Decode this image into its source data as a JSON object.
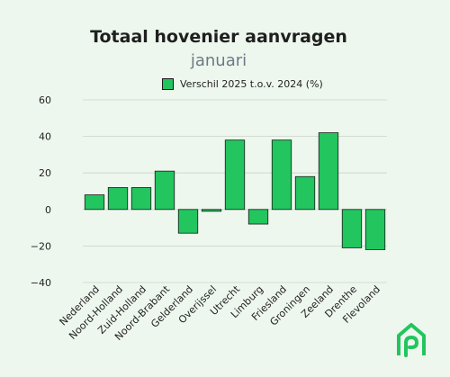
{
  "chart_data": {
    "type": "bar",
    "title": "Totaal hovenier aanvragen",
    "subtitle": "januari",
    "legend": "Verschil 2025 t.o.v. 2024 (%)",
    "categories": [
      "Nederland",
      "Noord-Holland",
      "Zuid-Holland",
      "Noord-Brabant",
      "Gelderland",
      "Overijssel",
      "Utrecht",
      "Limburg",
      "Friesland",
      "Groningen",
      "Zeeland",
      "Drenthe",
      "Flevoland"
    ],
    "values": [
      8,
      12,
      12,
      21,
      -13,
      -1,
      38,
      -8,
      38,
      18,
      42,
      -21,
      -22
    ],
    "ylim": [
      -40,
      60
    ],
    "yticks": [
      -40,
      -20,
      0,
      20,
      40,
      60
    ],
    "ytick_labels": [
      "−40",
      "−20",
      "0",
      "20",
      "40",
      "60"
    ],
    "grid": true,
    "legend_position": "top-center",
    "bar_color": "#22c55e"
  },
  "branding": {
    "logo_icon": "house-logo-icon",
    "logo_color": "#22c55e"
  }
}
